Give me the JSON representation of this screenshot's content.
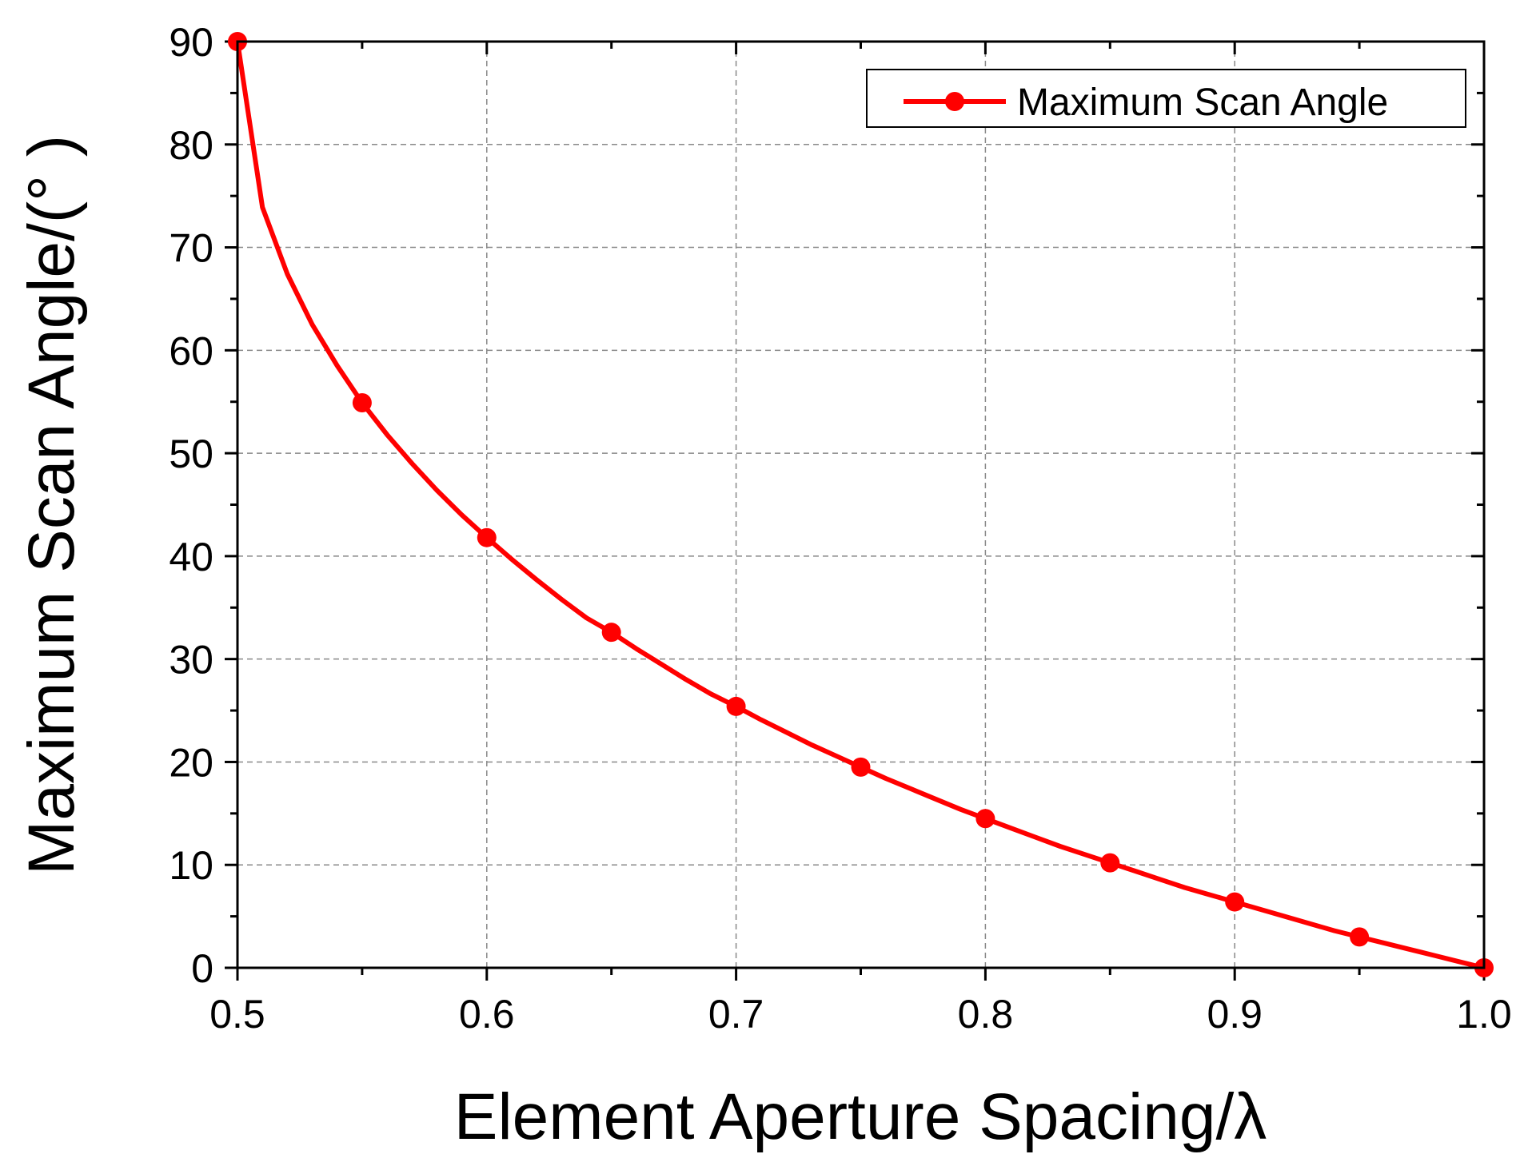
{
  "chart_data": {
    "type": "line",
    "title": "",
    "xlabel": "Element Aperture Spacing/λ",
    "ylabel": "Maximum Scan Angle/(° )",
    "xlim": [
      0.5,
      1.0
    ],
    "ylim": [
      0,
      90
    ],
    "xticks": [
      0.5,
      0.6,
      0.7,
      0.8,
      0.9,
      1.0
    ],
    "xtick_labels": [
      "0.5",
      "0.6",
      "0.7",
      "0.8",
      "0.9",
      "1.0"
    ],
    "yticks": [
      0,
      10,
      20,
      30,
      40,
      50,
      60,
      70,
      80,
      90
    ],
    "ytick_labels": [
      "0",
      "10",
      "20",
      "30",
      "40",
      "50",
      "60",
      "70",
      "80",
      "90"
    ],
    "grid": true,
    "legend_position": "top-right",
    "series": [
      {
        "name": "Maximum Scan Angle",
        "color": "#ff0000",
        "marker": "circle",
        "line": {
          "x": [
            0.5,
            0.51,
            0.52,
            0.53,
            0.54,
            0.55,
            0.56,
            0.57,
            0.58,
            0.59,
            0.6,
            0.61,
            0.62,
            0.63,
            0.64,
            0.65,
            0.66,
            0.67,
            0.68,
            0.69,
            0.7,
            0.71,
            0.72,
            0.73,
            0.74,
            0.75,
            0.76,
            0.77,
            0.78,
            0.79,
            0.8,
            0.81,
            0.82,
            0.83,
            0.84,
            0.85,
            0.86,
            0.87,
            0.88,
            0.89,
            0.9,
            0.91,
            0.92,
            0.93,
            0.94,
            0.95,
            0.96,
            0.97,
            0.98,
            0.99,
            1.0
          ],
          "y": [
            90,
            73.9,
            67.4,
            62.5,
            58.5,
            54.9,
            51.8,
            49.0,
            46.4,
            44.0,
            41.8,
            39.7,
            37.7,
            35.8,
            34.0,
            32.6,
            31.0,
            29.5,
            28.0,
            26.6,
            25.4,
            24.1,
            22.9,
            21.7,
            20.6,
            19.5,
            18.4,
            17.4,
            16.4,
            15.4,
            14.5,
            13.6,
            12.7,
            11.8,
            11.0,
            10.2,
            9.4,
            8.6,
            7.8,
            7.1,
            6.4,
            5.7,
            5.0,
            4.3,
            3.6,
            3.0,
            2.4,
            1.8,
            1.2,
            0.6,
            0
          ]
        },
        "points": {
          "x": [
            0.5,
            0.55,
            0.6,
            0.65,
            0.7,
            0.75,
            0.8,
            0.85,
            0.9,
            0.95,
            1.0
          ],
          "y": [
            90,
            54.9,
            41.8,
            32.6,
            25.4,
            19.5,
            14.5,
            10.2,
            6.4,
            3.0,
            0
          ]
        }
      }
    ]
  }
}
